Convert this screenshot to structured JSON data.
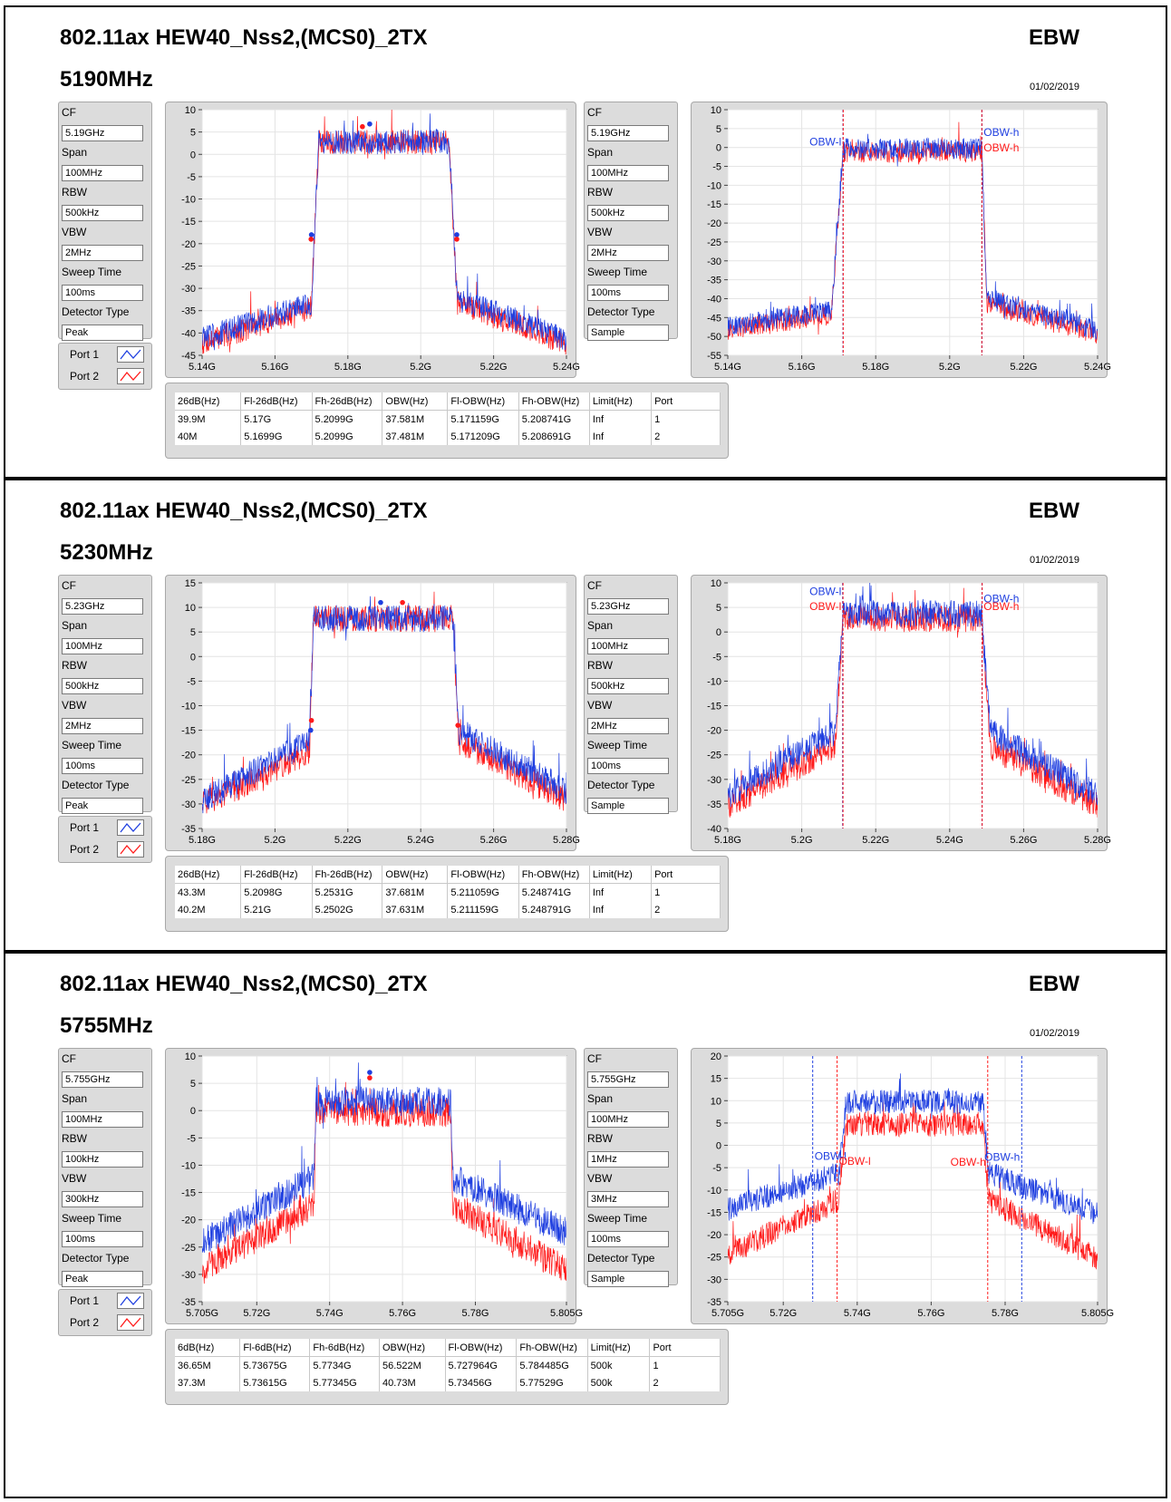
{
  "colors": {
    "port1": "#1f3fe0",
    "port2": "#ff1a1a"
  },
  "port_legend": [
    {
      "label": "Port 1"
    },
    {
      "label": "Port 2"
    }
  ],
  "sections": [
    {
      "title": "802.11ax HEW40_Nss2,(MCS0)_2TX",
      "ebw": "EBW",
      "freq": "5190MHz",
      "date": "01/02/2019",
      "left_config": [
        {
          "label": "CF",
          "value": "5.19GHz"
        },
        {
          "label": "Span",
          "value": "100MHz"
        },
        {
          "label": "RBW",
          "value": "500kHz"
        },
        {
          "label": "VBW",
          "value": "2MHz"
        },
        {
          "label": "Sweep Time",
          "value": "100ms"
        },
        {
          "label": "Detector Type",
          "value": "Peak"
        }
      ],
      "right_config": [
        {
          "label": "CF",
          "value": "5.19GHz"
        },
        {
          "label": "Span",
          "value": "100MHz"
        },
        {
          "label": "RBW",
          "value": "500kHz"
        },
        {
          "label": "VBW",
          "value": "2MHz"
        },
        {
          "label": "Sweep Time",
          "value": "100ms"
        },
        {
          "label": "Detector Type",
          "value": "Sample"
        }
      ],
      "table": {
        "headers": [
          "26dB(Hz)",
          "Fl-26dB(Hz)",
          "Fh-26dB(Hz)",
          "OBW(Hz)",
          "Fl-OBW(Hz)",
          "Fh-OBW(Hz)",
          "Limit(Hz)",
          "Port"
        ],
        "rows": [
          [
            "39.9M",
            "5.17G",
            "5.2099G",
            "37.581M",
            "5.171159G",
            "5.208741G",
            "Inf",
            "1"
          ],
          [
            "40M",
            "5.1699G",
            "5.2099G",
            "37.481M",
            "5.171209G",
            "5.208691G",
            "Inf",
            "2"
          ]
        ]
      }
    },
    {
      "title": "802.11ax HEW40_Nss2,(MCS0)_2TX",
      "ebw": "EBW",
      "freq": "5230MHz",
      "date": "01/02/2019",
      "left_config": [
        {
          "label": "CF",
          "value": "5.23GHz"
        },
        {
          "label": "Span",
          "value": "100MHz"
        },
        {
          "label": "RBW",
          "value": "500kHz"
        },
        {
          "label": "VBW",
          "value": "2MHz"
        },
        {
          "label": "Sweep Time",
          "value": "100ms"
        },
        {
          "label": "Detector Type",
          "value": "Peak"
        }
      ],
      "right_config": [
        {
          "label": "CF",
          "value": "5.23GHz"
        },
        {
          "label": "Span",
          "value": "100MHz"
        },
        {
          "label": "RBW",
          "value": "500kHz"
        },
        {
          "label": "VBW",
          "value": "2MHz"
        },
        {
          "label": "Sweep Time",
          "value": "100ms"
        },
        {
          "label": "Detector Type",
          "value": "Sample"
        }
      ],
      "table": {
        "headers": [
          "26dB(Hz)",
          "Fl-26dB(Hz)",
          "Fh-26dB(Hz)",
          "OBW(Hz)",
          "Fl-OBW(Hz)",
          "Fh-OBW(Hz)",
          "Limit(Hz)",
          "Port"
        ],
        "rows": [
          [
            "43.3M",
            "5.2098G",
            "5.2531G",
            "37.681M",
            "5.211059G",
            "5.248741G",
            "Inf",
            "1"
          ],
          [
            "40.2M",
            "5.21G",
            "5.2502G",
            "37.631M",
            "5.211159G",
            "5.248791G",
            "Inf",
            "2"
          ]
        ]
      }
    },
    {
      "title": "802.11ax HEW40_Nss2,(MCS0)_2TX",
      "ebw": "EBW",
      "freq": "5755MHz",
      "date": "01/02/2019",
      "left_config": [
        {
          "label": "CF",
          "value": "5.755GHz"
        },
        {
          "label": "Span",
          "value": "100MHz"
        },
        {
          "label": "RBW",
          "value": "100kHz"
        },
        {
          "label": "VBW",
          "value": "300kHz"
        },
        {
          "label": "Sweep Time",
          "value": "100ms"
        },
        {
          "label": "Detector Type",
          "value": "Peak"
        }
      ],
      "right_config": [
        {
          "label": "CF",
          "value": "5.755GHz"
        },
        {
          "label": "Span",
          "value": "100MHz"
        },
        {
          "label": "RBW",
          "value": "1MHz"
        },
        {
          "label": "VBW",
          "value": "3MHz"
        },
        {
          "label": "Sweep Time",
          "value": "100ms"
        },
        {
          "label": "Detector Type",
          "value": "Sample"
        }
      ],
      "table": {
        "headers": [
          "6dB(Hz)",
          "Fl-6dB(Hz)",
          "Fh-6dB(Hz)",
          "OBW(Hz)",
          "Fl-OBW(Hz)",
          "Fh-OBW(Hz)",
          "Limit(Hz)",
          "Port"
        ],
        "rows": [
          [
            "36.65M",
            "5.73675G",
            "5.7734G",
            "56.522M",
            "5.727964G",
            "5.784485G",
            "500k",
            "1"
          ],
          [
            "37.3M",
            "5.73615G",
            "5.77345G",
            "40.73M",
            "5.73456G",
            "5.77529G",
            "500k",
            "2"
          ]
        ]
      }
    }
  ],
  "chart_data": [
    {
      "type": "line",
      "xlim": [
        5.14,
        5.24
      ],
      "ylim": [
        -45,
        10
      ],
      "x_ticks": [
        5.14,
        5.16,
        5.18,
        5.2,
        5.22,
        5.24
      ],
      "x_tick_labels": [
        "5.14G",
        "5.16G",
        "5.18G",
        "5.2G",
        "5.22G",
        "5.24G"
      ],
      "y_ticks": [
        -45,
        -40,
        -35,
        -30,
        -25,
        -20,
        -15,
        -10,
        -5,
        0,
        5,
        10
      ],
      "y_tick_labels": [
        "-45",
        "-40",
        "-35",
        "-30",
        "-25",
        "-20",
        "-15",
        "-10",
        "-5",
        "0",
        "5",
        "10"
      ],
      "grid": true,
      "series": [
        {
          "name": "Port 1",
          "x": [
            5.14,
            5.17,
            5.172,
            5.2078,
            5.21,
            5.24
          ],
          "y": [
            -41,
            -33,
            3,
            3,
            -32,
            -41
          ]
        },
        {
          "name": "Port 2",
          "x": [
            5.14,
            5.17,
            5.172,
            5.2078,
            5.21,
            5.24
          ],
          "y": [
            -42,
            -34,
            3,
            3,
            -33,
            -42
          ]
        }
      ],
      "markers": [
        {
          "series": "Port 1",
          "x": [
            5.17,
            5.186,
            5.2099
          ],
          "y": [
            -18,
            6.8,
            -18
          ]
        },
        {
          "series": "Port 2",
          "x": [
            5.1699,
            5.184,
            5.2099
          ],
          "y": [
            -19,
            6.2,
            -19
          ]
        }
      ],
      "annotations": [],
      "vlines": []
    },
    {
      "type": "line",
      "xlim": [
        5.14,
        5.24
      ],
      "ylim": [
        -55,
        10
      ],
      "x_ticks": [
        5.14,
        5.16,
        5.18,
        5.2,
        5.22,
        5.24
      ],
      "x_tick_labels": [
        "5.14G",
        "5.16G",
        "5.18G",
        "5.2G",
        "5.22G",
        "5.24G"
      ],
      "y_ticks": [
        -55,
        -50,
        -45,
        -40,
        -35,
        -30,
        -25,
        -20,
        -15,
        -10,
        -5,
        0,
        5,
        10
      ],
      "y_tick_labels": [
        "-55",
        "-50",
        "-45",
        "-40",
        "-35",
        "-30",
        "-25",
        "-20",
        "-15",
        "-10",
        "-5",
        "0",
        "5",
        "10"
      ],
      "grid": true,
      "series": [
        {
          "name": "Port 1",
          "x": [
            5.14,
            5.168,
            5.1712,
            5.2087,
            5.21,
            5.24
          ],
          "y": [
            -47,
            -43,
            0,
            0,
            -40,
            -48
          ]
        },
        {
          "name": "Port 2",
          "x": [
            5.14,
            5.168,
            5.1712,
            5.2087,
            5.21,
            5.24
          ],
          "y": [
            -48,
            -44,
            -1,
            -1,
            -41,
            -49
          ]
        }
      ],
      "markers": [],
      "annotations": [
        {
          "text": "OBW-l",
          "x": 5.1712,
          "y": 0.5,
          "series": "Port 1",
          "anchor": "end"
        },
        {
          "text": "OBW-h",
          "x": 5.2087,
          "y": 3,
          "series": "Port 1",
          "anchor": "start"
        },
        {
          "text": "OBW-h",
          "x": 5.2087,
          "y": -1,
          "series": "Port 2",
          "anchor": "start"
        }
      ],
      "vlines": [
        {
          "x": 5.171159,
          "series": "Port 1"
        },
        {
          "x": 5.171209,
          "series": "Port 2"
        },
        {
          "x": 5.208741,
          "series": "Port 1"
        },
        {
          "x": 5.208691,
          "series": "Port 2"
        }
      ]
    },
    {
      "type": "line",
      "xlim": [
        5.18,
        5.28
      ],
      "ylim": [
        -35,
        15
      ],
      "x_ticks": [
        5.18,
        5.2,
        5.22,
        5.24,
        5.26,
        5.28
      ],
      "x_tick_labels": [
        "5.18G",
        "5.2G",
        "5.22G",
        "5.24G",
        "5.26G",
        "5.28G"
      ],
      "y_ticks": [
        -35,
        -30,
        -25,
        -20,
        -15,
        -10,
        -5,
        0,
        5,
        10,
        15
      ],
      "y_tick_labels": [
        "-35",
        "-30",
        "-25",
        "-20",
        "-15",
        "-10",
        "-5",
        "0",
        "5",
        "10",
        "15"
      ],
      "grid": true,
      "series": [
        {
          "name": "Port 1",
          "x": [
            5.18,
            5.2095,
            5.2105,
            5.2488,
            5.2505,
            5.28
          ],
          "y": [
            -29,
            -17,
            8,
            8,
            -15,
            -27
          ]
        },
        {
          "name": "Port 2",
          "x": [
            5.18,
            5.2095,
            5.2105,
            5.2488,
            5.2505,
            5.28
          ],
          "y": [
            -30,
            -19,
            8,
            8,
            -17,
            -29
          ]
        }
      ],
      "markers": [
        {
          "series": "Port 1",
          "x": [
            5.2098,
            5.229,
            5.2531
          ],
          "y": [
            -15,
            11,
            -16
          ]
        },
        {
          "series": "Port 2",
          "x": [
            5.21,
            5.235,
            5.2502
          ],
          "y": [
            -13,
            11,
            -14
          ]
        }
      ],
      "annotations": [],
      "vlines": []
    },
    {
      "type": "line",
      "xlim": [
        5.18,
        5.28
      ],
      "ylim": [
        -40,
        10
      ],
      "x_ticks": [
        5.18,
        5.2,
        5.22,
        5.24,
        5.26,
        5.28
      ],
      "x_tick_labels": [
        "5.18G",
        "5.2G",
        "5.22G",
        "5.24G",
        "5.26G",
        "5.28G"
      ],
      "y_ticks": [
        -40,
        -35,
        -30,
        -25,
        -20,
        -15,
        -10,
        -5,
        0,
        5,
        10
      ],
      "y_tick_labels": [
        "-40",
        "-35",
        "-30",
        "-25",
        "-20",
        "-15",
        "-10",
        "-5",
        "0",
        "5",
        "10"
      ],
      "grid": true,
      "series": [
        {
          "name": "Port 1",
          "x": [
            5.18,
            5.209,
            5.2112,
            5.2486,
            5.251,
            5.28
          ],
          "y": [
            -33,
            -20,
            4,
            4,
            -20,
            -33
          ]
        },
        {
          "name": "Port 2",
          "x": [
            5.18,
            5.209,
            5.2112,
            5.2486,
            5.251,
            5.28
          ],
          "y": [
            -35,
            -23,
            3,
            3,
            -23,
            -35
          ]
        }
      ],
      "markers": [],
      "annotations": [
        {
          "text": "OBW-l",
          "x": 5.2112,
          "y": 7.5,
          "series": "Port 1",
          "anchor": "end"
        },
        {
          "text": "OBW-l",
          "x": 5.2112,
          "y": 4.5,
          "series": "Port 2",
          "anchor": "end"
        },
        {
          "text": "OBW-h",
          "x": 5.2487,
          "y": 6,
          "series": "Port 1",
          "anchor": "start"
        },
        {
          "text": "OBW-h",
          "x": 5.2487,
          "y": 4.5,
          "series": "Port 2",
          "anchor": "start"
        }
      ],
      "vlines": [
        {
          "x": 5.211059,
          "series": "Port 1"
        },
        {
          "x": 5.211159,
          "series": "Port 2"
        },
        {
          "x": 5.248741,
          "series": "Port 1"
        },
        {
          "x": 5.248791,
          "series": "Port 2"
        }
      ]
    },
    {
      "type": "line",
      "xlim": [
        5.705,
        5.805
      ],
      "ylim": [
        -35,
        10
      ],
      "x_ticks": [
        5.705,
        5.72,
        5.74,
        5.76,
        5.78,
        5.805
      ],
      "x_tick_labels": [
        "5.705G",
        "5.72G",
        "5.74G",
        "5.76G",
        "5.78G",
        "5.805G"
      ],
      "y_ticks": [
        -35,
        -30,
        -25,
        -20,
        -15,
        -10,
        -5,
        0,
        5,
        10
      ],
      "y_tick_labels": [
        "-35",
        "-30",
        "-25",
        "-20",
        "-15",
        "-10",
        "-5",
        "0",
        "5",
        "10"
      ],
      "grid": true,
      "series": [
        {
          "name": "Port 1",
          "x": [
            5.705,
            5.7357,
            5.7362,
            5.7733,
            5.7738,
            5.805
          ],
          "y": [
            -24,
            -12,
            2,
            2,
            -12,
            -22
          ]
        },
        {
          "name": "Port 2",
          "x": [
            5.705,
            5.7357,
            5.7362,
            5.7733,
            5.7738,
            5.805
          ],
          "y": [
            -29,
            -17,
            0,
            0,
            -17,
            -29
          ]
        }
      ],
      "markers": [
        {
          "series": "Port 1",
          "x": [
            5.751
          ],
          "y": [
            7
          ]
        },
        {
          "series": "Port 2",
          "x": [
            5.751
          ],
          "y": [
            6
          ]
        }
      ],
      "annotations": [],
      "vlines": []
    },
    {
      "type": "line",
      "xlim": [
        5.705,
        5.805
      ],
      "ylim": [
        -35,
        20
      ],
      "x_ticks": [
        5.705,
        5.72,
        5.74,
        5.76,
        5.78,
        5.805
      ],
      "x_tick_labels": [
        "5.705G",
        "5.72G",
        "5.74G",
        "5.76G",
        "5.78G",
        "5.805G"
      ],
      "y_ticks": [
        -35,
        -30,
        -25,
        -20,
        -15,
        -10,
        -5,
        0,
        5,
        10,
        15,
        20
      ],
      "y_tick_labels": [
        "-35",
        "-30",
        "-25",
        "-20",
        "-15",
        "-10",
        "-5",
        "0",
        "5",
        "10",
        "15",
        "20"
      ],
      "grid": true,
      "series": [
        {
          "name": "Port 1",
          "x": [
            5.705,
            5.735,
            5.737,
            5.774,
            5.7755,
            5.805
          ],
          "y": [
            -14,
            -6,
            10,
            10,
            -6,
            -15
          ]
        },
        {
          "name": "Port 2",
          "x": [
            5.705,
            5.735,
            5.737,
            5.774,
            5.7755,
            5.805
          ],
          "y": [
            -24,
            -12,
            5,
            5,
            -12,
            -25
          ]
        }
      ],
      "markers": [],
      "annotations": [
        {
          "text": "OBW-l",
          "x": 5.727964,
          "y": -3.2,
          "series": "Port 1",
          "anchor": "start"
        },
        {
          "text": "OBW-l",
          "x": 5.73456,
          "y": -4.4,
          "series": "Port 2",
          "anchor": "start"
        },
        {
          "text": "OBW-h",
          "x": 5.77529,
          "y": -4.6,
          "series": "Port 2",
          "anchor": "end"
        },
        {
          "text": "OBW-h",
          "x": 5.784485,
          "y": -3.4,
          "series": "Port 1",
          "anchor": "end"
        }
      ],
      "vlines": [
        {
          "x": 5.727964,
          "series": "Port 1"
        },
        {
          "x": 5.73456,
          "series": "Port 2"
        },
        {
          "x": 5.77529,
          "series": "Port 2"
        },
        {
          "x": 5.784485,
          "series": "Port 1"
        }
      ]
    }
  ]
}
